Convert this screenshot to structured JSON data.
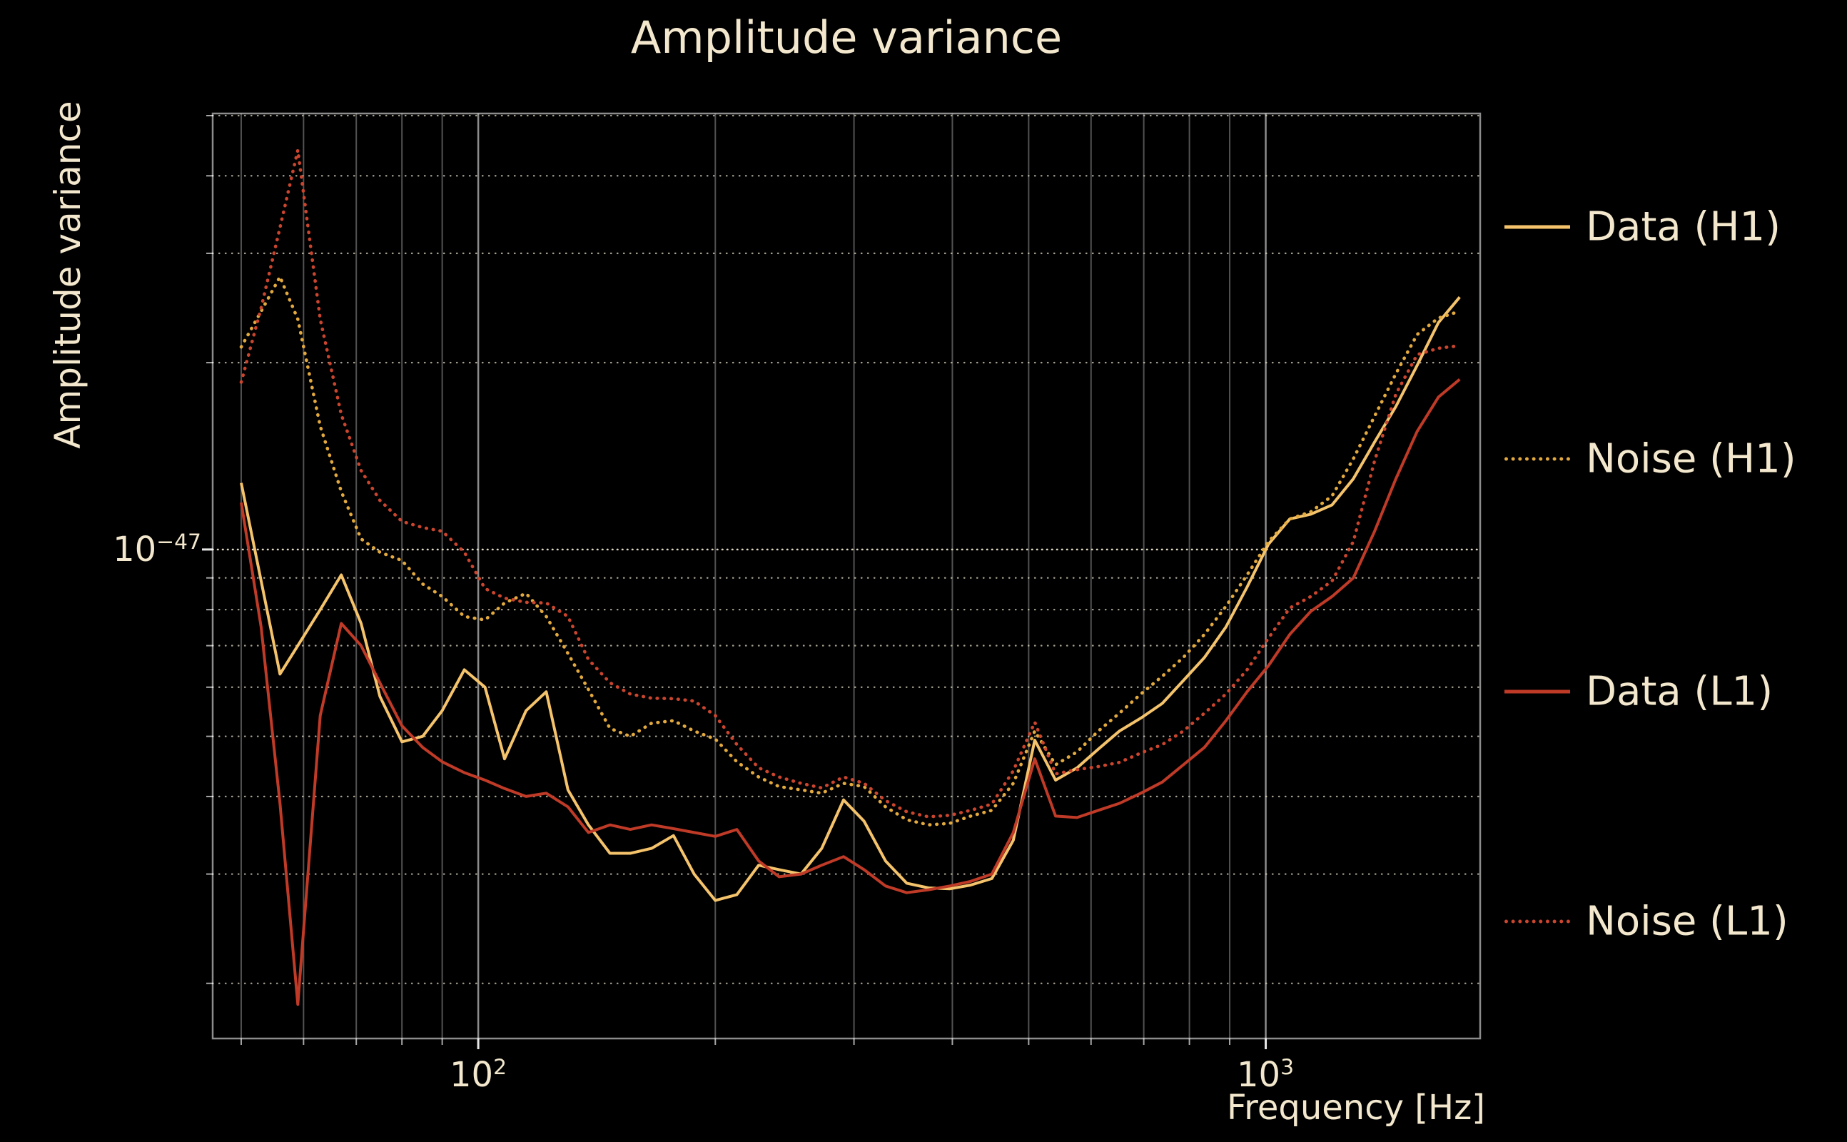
{
  "title": "Amplitude variance",
  "axes": {
    "xlabel": "Frequency [Hz]",
    "ylabel": "Amplitude variance",
    "x_ticks": [
      {
        "base": "10",
        "exp": "2"
      },
      {
        "base": "10",
        "exp": "3"
      }
    ],
    "y_ticks": [
      {
        "base": "10",
        "exp": "−47"
      }
    ]
  },
  "legend": [
    {
      "label": "Data (H1)",
      "color": "#f4c36b",
      "line": "solid"
    },
    {
      "label": "Noise (H1)",
      "color": "#e2a93f",
      "line": "dotted"
    },
    {
      "label": "Data (L1)",
      "color": "#bf3a27",
      "line": "solid"
    },
    {
      "label": "Noise (L1)",
      "color": "#ca452e",
      "line": "dotted"
    }
  ],
  "colors": {
    "background": "#000000",
    "text": "#f3e8cd",
    "grid_vertical": "#ffffff",
    "grid_horizontal": "#ded6c2",
    "gold_data": "#f4c36b",
    "gold_noise": "#e2a93f",
    "red_data": "#bf3a27",
    "red_noise": "#ca452e"
  },
  "chart_data": {
    "type": "line",
    "title": "Amplitude variance",
    "xlabel": "Frequency [Hz]",
    "ylabel": "Amplitude variance",
    "x_scale": "log",
    "y_scale": "log",
    "grid": true,
    "legend_position": "right-outside",
    "xlim": [
      46,
      1872
    ],
    "ylim": [
      1.63e-48,
      5.04e-47
    ],
    "values_unit": 1e-48,
    "x_hz": [
      50,
      53,
      56,
      59,
      63,
      67,
      71,
      75,
      80,
      85,
      90,
      96,
      102,
      108,
      115,
      122,
      130,
      138,
      147,
      156,
      166,
      177,
      188,
      200,
      213,
      227,
      241,
      257,
      273,
      291,
      309,
      329,
      350,
      373,
      397,
      422,
      449,
      478,
      509,
      541,
      576,
      613,
      652,
      694,
      739,
      786,
      836,
      890,
      947,
      1008,
      1073,
      1141,
      1214,
      1292,
      1375,
      1463,
      1557,
      1657,
      1763
    ],
    "series": [
      {
        "name": "Data (H1)",
        "color": "#f4c36b",
        "line": "solid",
        "values": [
          12.8,
          8.9,
          6.3,
          7.0,
          8.0,
          9.1,
          7.6,
          5.8,
          4.9,
          5.0,
          5.5,
          6.4,
          6.0,
          4.6,
          5.5,
          5.9,
          4.1,
          3.6,
          3.24,
          3.24,
          3.3,
          3.46,
          3.0,
          2.72,
          2.78,
          3.1,
          3.05,
          3.0,
          3.3,
          3.95,
          3.65,
          3.15,
          2.9,
          2.85,
          2.84,
          2.88,
          2.95,
          3.4,
          4.93,
          4.25,
          4.45,
          4.77,
          5.1,
          5.35,
          5.65,
          6.15,
          6.7,
          7.5,
          8.7,
          10.2,
          11.2,
          11.4,
          11.8,
          13.0,
          14.9,
          17.0,
          19.8,
          23.2,
          25.5
        ]
      },
      {
        "name": "Noise (H1)",
        "color": "#e2a93f",
        "line": "dotted",
        "values": [
          21.2,
          24.2,
          27.5,
          23.5,
          15.8,
          12.4,
          10.4,
          9.9,
          9.6,
          8.8,
          8.4,
          7.8,
          7.7,
          8.2,
          8.5,
          7.8,
          6.8,
          5.95,
          5.15,
          5.0,
          5.25,
          5.3,
          5.1,
          4.95,
          4.55,
          4.3,
          4.15,
          4.1,
          4.05,
          4.2,
          4.15,
          3.85,
          3.67,
          3.6,
          3.62,
          3.72,
          3.8,
          4.2,
          5.1,
          4.5,
          4.72,
          5.1,
          5.45,
          5.85,
          6.25,
          6.7,
          7.3,
          8.1,
          9.1,
          10.3,
          11.2,
          11.5,
          12.2,
          14.0,
          16.4,
          19.2,
          22.2,
          23.6,
          24.2
        ]
      },
      {
        "name": "Data (L1)",
        "color": "#bf3a27",
        "line": "solid",
        "values": [
          11.9,
          7.5,
          3.9,
          1.85,
          5.4,
          7.6,
          7.0,
          6.1,
          5.2,
          4.8,
          4.55,
          4.37,
          4.25,
          4.12,
          4.0,
          4.05,
          3.85,
          3.5,
          3.6,
          3.54,
          3.6,
          3.55,
          3.5,
          3.45,
          3.54,
          3.15,
          2.97,
          3.0,
          3.1,
          3.2,
          3.05,
          2.87,
          2.8,
          2.83,
          2.87,
          2.92,
          3.0,
          3.5,
          4.6,
          3.72,
          3.7,
          3.8,
          3.9,
          4.05,
          4.22,
          4.5,
          4.8,
          5.3,
          5.9,
          6.5,
          7.3,
          7.95,
          8.4,
          9.0,
          10.7,
          13.0,
          15.5,
          17.6,
          18.8
        ]
      },
      {
        "name": "Noise (L1)",
        "color": "#ca452e",
        "line": "dotted",
        "values": [
          18.6,
          24.5,
          33.0,
          44.0,
          23.5,
          16.5,
          13.4,
          12.0,
          11.1,
          10.85,
          10.7,
          9.9,
          8.65,
          8.35,
          8.22,
          8.2,
          7.8,
          6.65,
          6.1,
          5.85,
          5.76,
          5.75,
          5.7,
          5.4,
          4.85,
          4.45,
          4.3,
          4.2,
          4.13,
          4.3,
          4.2,
          3.94,
          3.78,
          3.71,
          3.73,
          3.8,
          3.89,
          4.4,
          5.27,
          4.35,
          4.42,
          4.47,
          4.54,
          4.7,
          4.85,
          5.1,
          5.45,
          5.85,
          6.4,
          7.2,
          8.05,
          8.4,
          8.9,
          10.3,
          13.9,
          17.8,
          20.6,
          21.1,
          21.3
        ]
      }
    ]
  }
}
